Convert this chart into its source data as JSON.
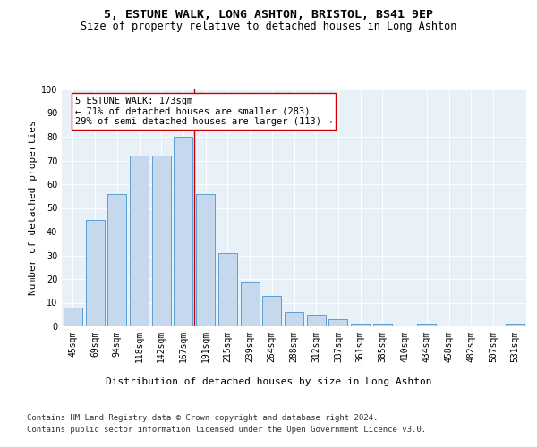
{
  "title": "5, ESTUNE WALK, LONG ASHTON, BRISTOL, BS41 9EP",
  "subtitle": "Size of property relative to detached houses in Long Ashton",
  "xlabel": "Distribution of detached houses by size in Long Ashton",
  "ylabel": "Number of detached properties",
  "categories": [
    "45sqm",
    "69sqm",
    "94sqm",
    "118sqm",
    "142sqm",
    "167sqm",
    "191sqm",
    "215sqm",
    "239sqm",
    "264sqm",
    "288sqm",
    "312sqm",
    "337sqm",
    "361sqm",
    "385sqm",
    "410sqm",
    "434sqm",
    "458sqm",
    "482sqm",
    "507sqm",
    "531sqm"
  ],
  "values": [
    8,
    45,
    56,
    72,
    72,
    80,
    56,
    31,
    19,
    13,
    6,
    5,
    3,
    1,
    1,
    0,
    1,
    0,
    0,
    0,
    1
  ],
  "bar_color": "#c5d8ed",
  "bar_edge_color": "#5a9fd4",
  "bar_linewidth": 0.7,
  "property_line_x": 5.5,
  "property_line_color": "#cc0000",
  "annotation_text": "5 ESTUNE WALK: 173sqm\n← 71% of detached houses are smaller (283)\n29% of semi-detached houses are larger (113) →",
  "annotation_box_color": "#ffffff",
  "annotation_box_edge_color": "#cc0000",
  "ylim": [
    0,
    100
  ],
  "yticks": [
    0,
    10,
    20,
    30,
    40,
    50,
    60,
    70,
    80,
    90,
    100
  ],
  "bg_color": "#e8f0f8",
  "fig_bg_color": "#ffffff",
  "footer_line1": "Contains HM Land Registry data © Crown copyright and database right 2024.",
  "footer_line2": "Contains public sector information licensed under the Open Government Licence v3.0.",
  "title_fontsize": 9.5,
  "subtitle_fontsize": 8.5,
  "axis_label_fontsize": 8,
  "tick_fontsize": 7,
  "annotation_fontsize": 7.5,
  "footer_fontsize": 6.5
}
